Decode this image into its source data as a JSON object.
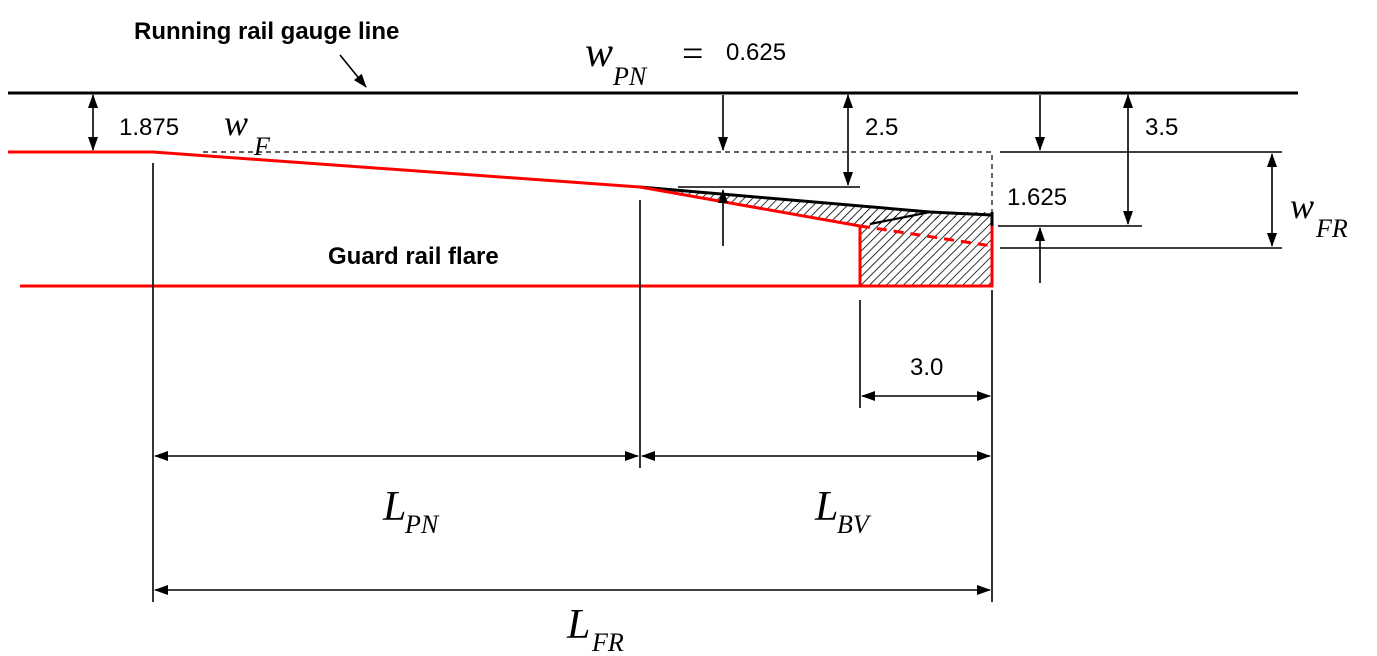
{
  "labels": {
    "running_rail": "Running rail gauge line",
    "guard_rail_flare": "Guard rail flare"
  },
  "dimensions": {
    "w_pn_value": "0.625",
    "d_1875": "1.875",
    "d_25": "2.5",
    "d_35": "3.5",
    "d_1625": "1.625",
    "d_30": "3.0"
  },
  "symbols": {
    "w_PN": {
      "main": "w",
      "sub": "PN",
      "op": "="
    },
    "w_F": {
      "main": "w",
      "sub": "F"
    },
    "w_FR": {
      "main": "w",
      "sub": "FR"
    },
    "L_PN": {
      "main": "L",
      "sub": "PN"
    },
    "L_BV": {
      "main": "L",
      "sub": "BV"
    },
    "L_FR": {
      "main": "L",
      "sub": "FR"
    }
  },
  "colors": {
    "rail": "#ff0000",
    "line": "#000000"
  }
}
